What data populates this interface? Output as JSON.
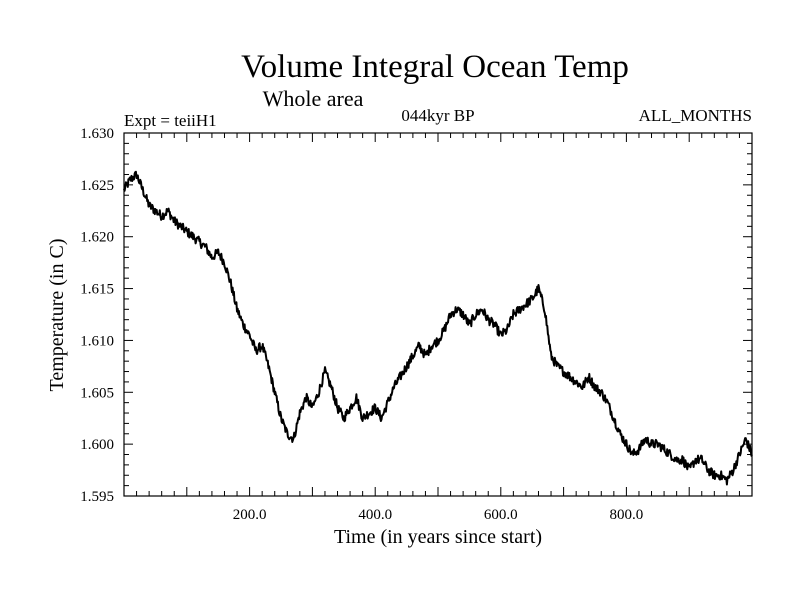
{
  "chart_data": {
    "type": "line",
    "title": "Volume Integral Ocean Temp",
    "subtitle": "Whole area",
    "info": {
      "left": "Expt = teiiH1",
      "center": "044kyr BP",
      "right": "ALL_MONTHS"
    },
    "xlabel": "Time (in years since start)",
    "ylabel": "Temperature (in C)",
    "xlim": [
      0,
      1000
    ],
    "ylim": [
      1.595,
      1.63
    ],
    "x_ticks": [
      "200.0",
      "400.0",
      "600.0",
      "800.0"
    ],
    "y_ticks": [
      "1.595",
      "1.600",
      "1.605",
      "1.610",
      "1.615",
      "1.620",
      "1.625",
      "1.630"
    ],
    "grid": false,
    "series": [
      {
        "color": "#000000",
        "x": [
          0,
          10,
          20,
          30,
          40,
          50,
          60,
          70,
          80,
          90,
          100,
          110,
          120,
          130,
          140,
          150,
          160,
          170,
          180,
          190,
          200,
          210,
          220,
          230,
          240,
          250,
          260,
          270,
          280,
          290,
          300,
          310,
          320,
          330,
          340,
          350,
          360,
          370,
          380,
          390,
          400,
          410,
          420,
          430,
          440,
          450,
          460,
          470,
          480,
          490,
          500,
          510,
          520,
          530,
          540,
          550,
          560,
          570,
          580,
          590,
          600,
          610,
          620,
          630,
          640,
          650,
          660,
          670,
          680,
          690,
          700,
          710,
          720,
          730,
          740,
          750,
          760,
          770,
          780,
          790,
          800,
          810,
          820,
          830,
          840,
          850,
          860,
          870,
          880,
          890,
          900,
          910,
          920,
          930,
          940,
          950,
          960,
          970,
          980,
          990,
          1000
        ],
        "values": [
          1.6245,
          1.6255,
          1.626,
          1.6245,
          1.623,
          1.6225,
          1.622,
          1.6225,
          1.6215,
          1.621,
          1.6205,
          1.62,
          1.6195,
          1.619,
          1.618,
          1.6185,
          1.6175,
          1.6155,
          1.613,
          1.6115,
          1.6105,
          1.609,
          1.6095,
          1.6075,
          1.605,
          1.6025,
          1.601,
          1.6005,
          1.603,
          1.6045,
          1.6035,
          1.605,
          1.607,
          1.6055,
          1.6035,
          1.6025,
          1.6035,
          1.6045,
          1.6025,
          1.603,
          1.6035,
          1.6025,
          1.604,
          1.6055,
          1.6065,
          1.6075,
          1.6085,
          1.6095,
          1.6085,
          1.6095,
          1.61,
          1.611,
          1.6125,
          1.613,
          1.6125,
          1.6115,
          1.6125,
          1.613,
          1.612,
          1.6115,
          1.6105,
          1.611,
          1.6125,
          1.613,
          1.6135,
          1.614,
          1.615,
          1.613,
          1.6085,
          1.6075,
          1.607,
          1.6065,
          1.606,
          1.6055,
          1.6065,
          1.6055,
          1.605,
          1.604,
          1.6025,
          1.601,
          1.6,
          1.599,
          1.5995,
          1.6005,
          1.6,
          1.6,
          1.5995,
          1.599,
          1.5985,
          1.5985,
          1.5975,
          1.5985,
          1.5985,
          1.5975,
          1.597,
          1.597,
          1.5965,
          1.5975,
          1.599,
          1.6005,
          1.599
        ]
      }
    ]
  }
}
